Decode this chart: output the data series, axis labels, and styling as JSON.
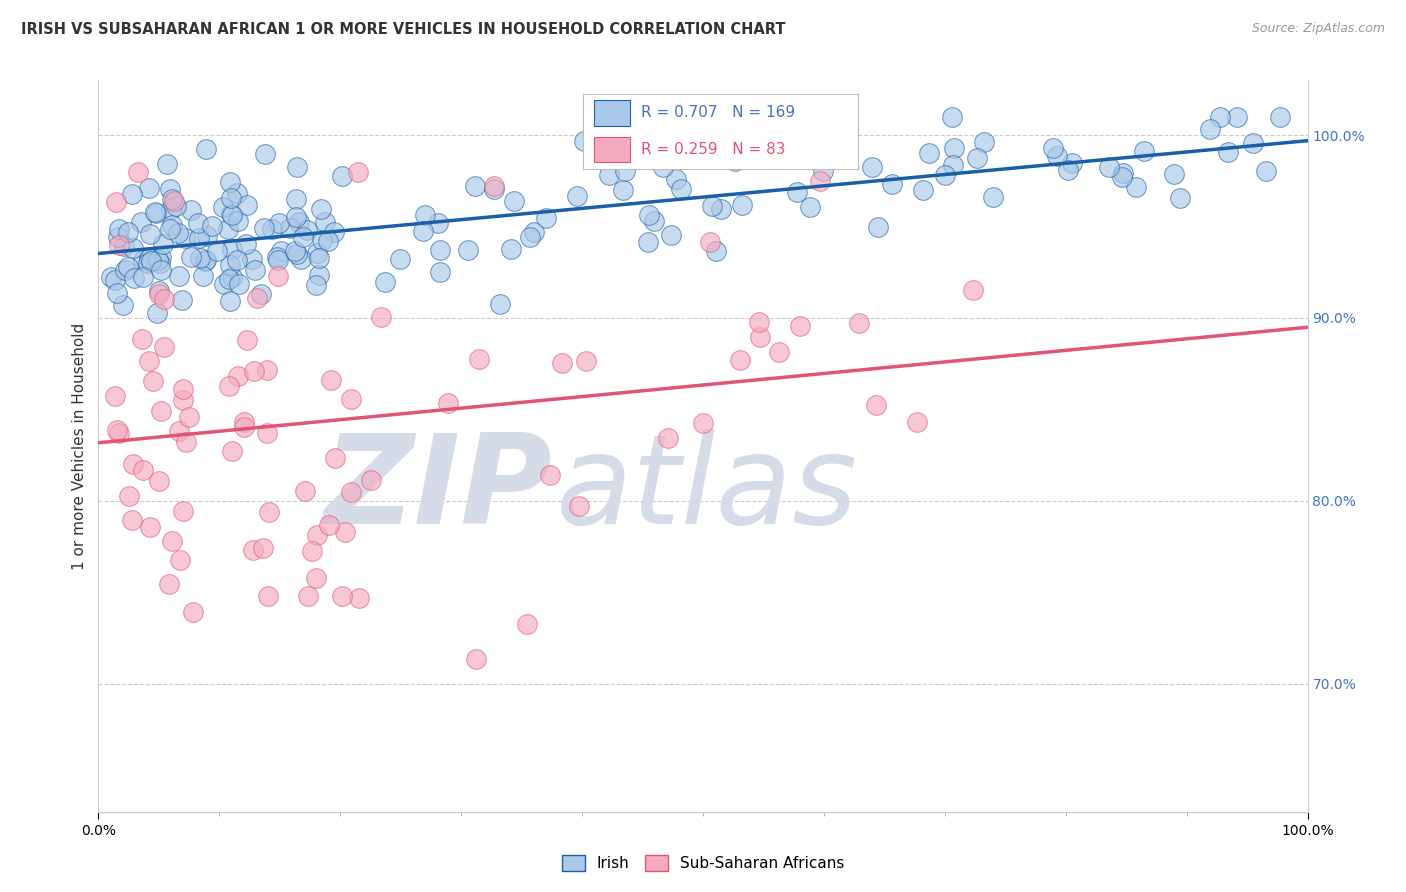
{
  "title": "IRISH VS SUBSAHARAN AFRICAN 1 OR MORE VEHICLES IN HOUSEHOLD CORRELATION CHART",
  "source": "Source: ZipAtlas.com",
  "ylabel": "1 or more Vehicles in Household",
  "xmin": 0.0,
  "xmax": 100.0,
  "ymin": 63.0,
  "ymax": 103.0,
  "irish_R": 0.707,
  "irish_N": 169,
  "ssa_R": 0.259,
  "ssa_N": 83,
  "irish_color": "#aac8e8",
  "ssa_color": "#f5aac0",
  "irish_line_color": "#1a5fa8",
  "ssa_line_color": "#e05575",
  "legend_R_color_irish": "#4472c4",
  "legend_R_color_ssa": "#e05575",
  "watermark_zip": "ZIP",
  "watermark_atlas": "atlas",
  "watermark_color": "#d5dce8",
  "grid_color": "#cccccc",
  "background_color": "#ffffff",
  "right_tick_color": "#4472c4"
}
